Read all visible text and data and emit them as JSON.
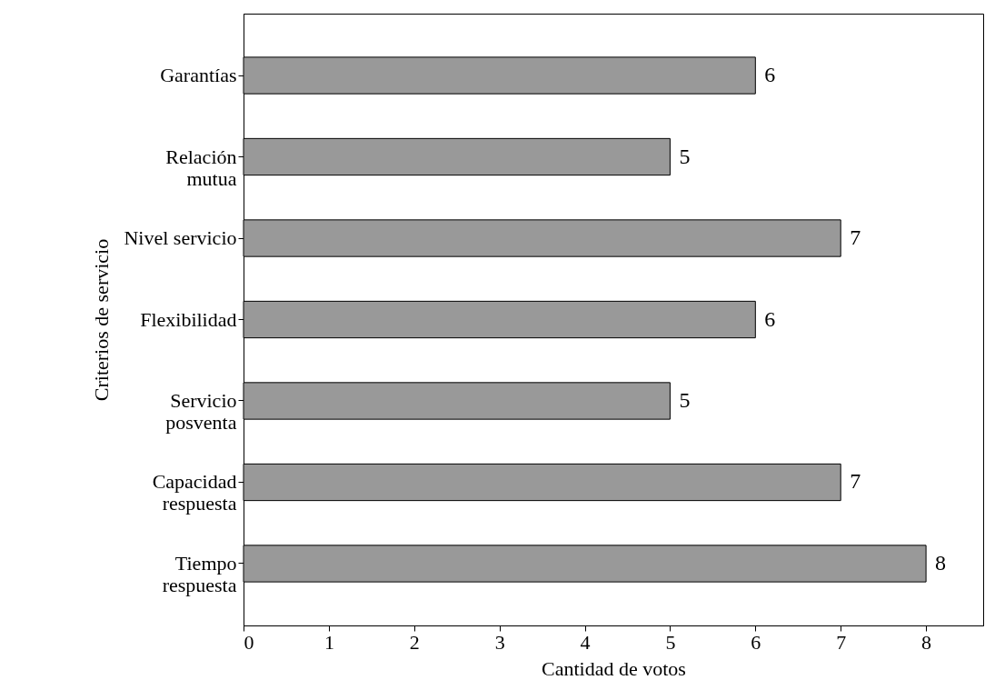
{
  "chart_data": {
    "type": "bar",
    "orientation": "horizontal",
    "categories": [
      "Garantías",
      "Relación\nmutua",
      "Nivel servicio",
      "Flexibilidad",
      "Servicio\nposventa",
      "Capacidad\nrespuesta",
      "Tiempo\nrespuesta"
    ],
    "values": [
      6,
      5,
      7,
      6,
      5,
      7,
      8
    ],
    "color": "#999999",
    "xlim": [
      0,
      8.67
    ],
    "xticks": [
      0,
      1,
      2,
      3,
      4,
      5,
      6,
      7,
      8
    ],
    "xlabel": "Cantidad de votos",
    "ylabel": "Criterios de servicio",
    "data_labels": true
  }
}
